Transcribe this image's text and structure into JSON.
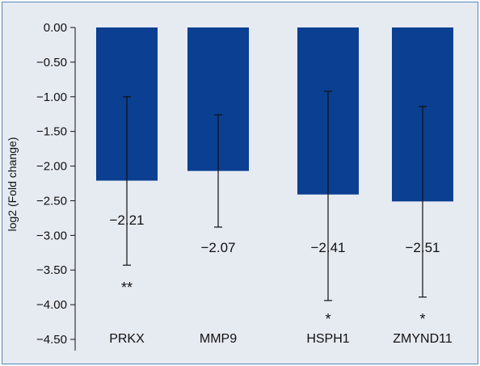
{
  "chart_data": {
    "type": "bar",
    "ylabel": "log2 (Fold change)",
    "ylim": [
      -4.5,
      0
    ],
    "yticks": [
      "0.00",
      "−0.50",
      "−1.00",
      "−1.50",
      "−2.00",
      "−2.50",
      "−3.00",
      "−3.50",
      "−4.00",
      "−4.50"
    ],
    "categories": [
      "PRKX",
      "MMP9",
      "HSPH1",
      "ZMYND11"
    ],
    "values": [
      -2.21,
      -2.07,
      -2.41,
      -2.51
    ],
    "value_labels": [
      "−2.21",
      "−2.07",
      "−2.41",
      "−2.51"
    ],
    "error_bars": [
      {
        "low": -3.43,
        "high": -1.0
      },
      {
        "low": -2.88,
        "high": -1.26
      },
      {
        "low": -3.94,
        "high": -0.92
      },
      {
        "low": -3.89,
        "high": -1.14
      }
    ],
    "significance": [
      "**",
      "",
      "*",
      "*"
    ],
    "bar_color": "#0a3f91",
    "grid": false,
    "legend": "none"
  }
}
